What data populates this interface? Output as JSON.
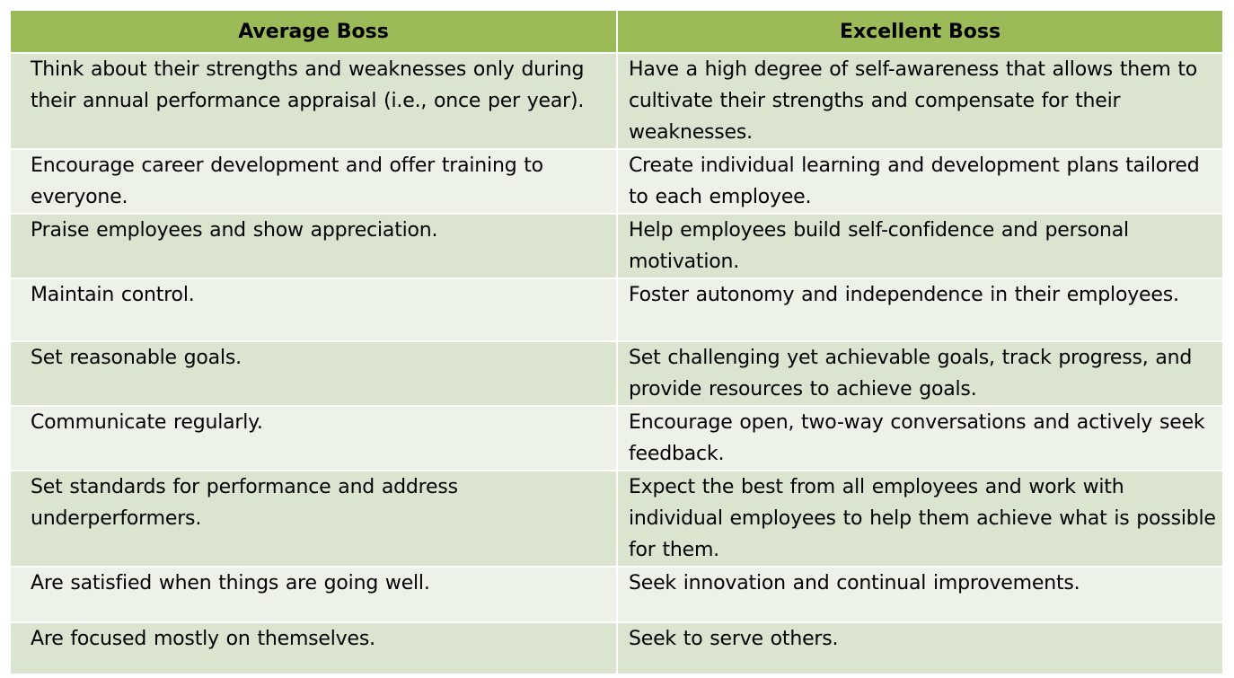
{
  "table": {
    "headers": [
      "Average Boss",
      "Excellent Boss"
    ],
    "rows": [
      [
        "Think about their strengths and weaknesses only during their annual performance appraisal (i.e., once per year).",
        "Have a high degree of self-awareness that allows them to cultivate their strengths and compensate for their weaknesses."
      ],
      [
        "Encourage career development and offer training to everyone.",
        "Create individual learning and development plans tailored to each employee."
      ],
      [
        "Praise employees and show appreciation.",
        "Help employees build self-confidence and personal motivation."
      ],
      [
        "Maintain control.",
        "Foster autonomy and independence in their employees."
      ],
      [
        "Set reasonable goals.",
        "Set challenging yet achievable goals, track progress, and provide resources to achieve goals."
      ],
      [
        "Communicate regularly.",
        "Encourage open, two-way conversations and actively seek feedback."
      ],
      [
        "Set standards for performance and address underperformers.",
        "Expect the best from all employees and work with individual employees to help them achieve what is possible for them."
      ],
      [
        "Are satisfied when things are going well.",
        "Seek innovation and continual improvements."
      ],
      [
        "Are focused mostly on themselves.",
        "Seek to serve others."
      ]
    ]
  },
  "colors": {
    "header": "#9bbb59",
    "row_dark": "#dbe4cf",
    "row_light": "#edf2e8"
  }
}
